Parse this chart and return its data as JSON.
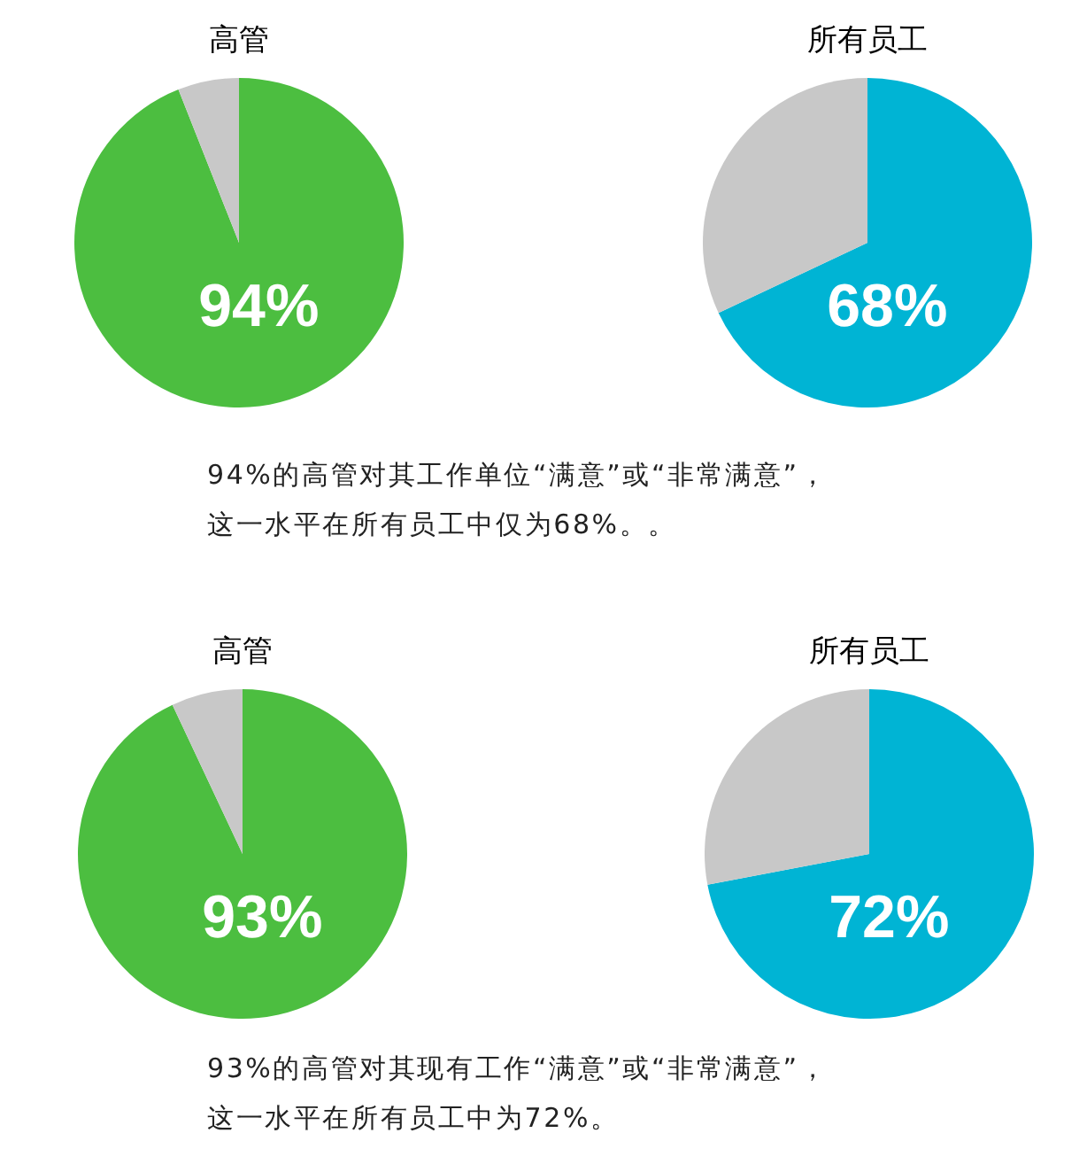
{
  "chart_data": [
    {
      "type": "pie",
      "title": "高管",
      "categories": [
        null,
        null
      ],
      "values": [
        94,
        6
      ],
      "colors": [
        "#4cbe40",
        "#c8c8c8"
      ],
      "value_labels": [
        "94%",
        null
      ],
      "annotations": [
        "94%的高管对其工作单位“满意”或“非常满意”，",
        "这一水平在所有员工中仅为68%。。"
      ]
    },
    {
      "type": "pie",
      "title": "所有员工",
      "categories": [
        null,
        null
      ],
      "values": [
        68,
        32
      ],
      "colors": [
        "#00b4d4",
        "#c8c8c8"
      ],
      "value_labels": [
        "68%",
        null
      ]
    },
    {
      "type": "pie",
      "title": "高管",
      "categories": [
        null,
        null
      ],
      "values": [
        93,
        7
      ],
      "colors": [
        "#4cbe40",
        "#c8c8c8"
      ],
      "value_labels": [
        "93%",
        null
      ],
      "annotations": [
        "93%的高管对其现有工作“满意”或“非常满意”，",
        "这一水平在所有员工中为72%。"
      ]
    },
    {
      "type": "pie",
      "title": "所有员工",
      "categories": [
        null,
        null
      ],
      "values": [
        72,
        28
      ],
      "colors": [
        "#00b4d4",
        "#c8c8c8"
      ],
      "value_labels": [
        "72%",
        null
      ]
    }
  ]
}
